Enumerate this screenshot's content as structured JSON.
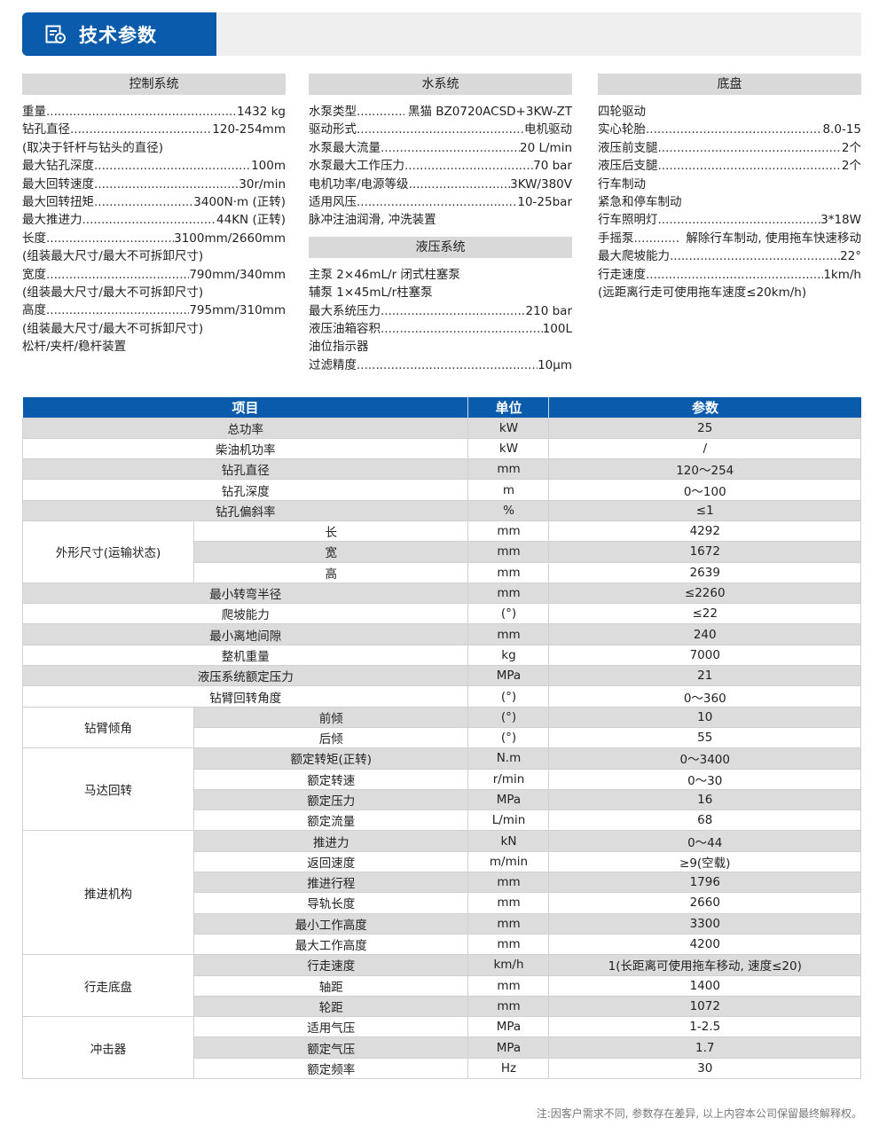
{
  "header": {
    "title": "技术参数",
    "icon": "spec-document-icon",
    "accent": "#0a5bab"
  },
  "sections": [
    {
      "title": "控制系统",
      "lines": [
        {
          "label": "重量",
          "value": "1432 kg"
        },
        {
          "label": "钻孔直径",
          "value": "120-254mm"
        },
        {
          "label": "(取决于钎杆与钻头的直径)"
        },
        {
          "label": "最大钻孔深度",
          "value": "100m"
        },
        {
          "label": "最大回转速度",
          "value": "30r/min"
        },
        {
          "label": "最大回转扭矩",
          "value": "3400N·m (正转)"
        },
        {
          "label": "最大推进力",
          "value": "44KN (正转)"
        },
        {
          "label": "长度",
          "value": "3100mm/2660mm"
        },
        {
          "label": "(组装最大尺寸/最大不可拆卸尺寸)"
        },
        {
          "label": "宽度",
          "value": "790mm/340mm"
        },
        {
          "label": "(组装最大尺寸/最大不可拆卸尺寸)"
        },
        {
          "label": "高度",
          "value": "795mm/310mm"
        },
        {
          "label": "(组装最大尺寸/最大不可拆卸尺寸)"
        },
        {
          "label": "松杆/夹杆/稳杆装置"
        }
      ]
    },
    {
      "title": "水系统",
      "lines": [
        {
          "label": "水泵类型",
          "value": "黑猫 BZ0720ACSD+3KW-ZT",
          "short": true
        },
        {
          "label": "驱动形式",
          "value": "电机驱动"
        },
        {
          "label": "水泵最大流量",
          "value": "20 L/min"
        },
        {
          "label": "水泵最大工作压力",
          "value": "70 bar"
        },
        {
          "label": "电机功率/电源等级",
          "value": "3KW/380V"
        },
        {
          "label": "适用风压",
          "value": "10-25bar"
        },
        {
          "label": "脉冲注油润滑, 冲洗装置"
        }
      ]
    },
    {
      "title": "液压系统",
      "lines": [
        {
          "label": "主泵 2×46mL/r 闭式柱塞泵"
        },
        {
          "label": "辅泵 1×45mL/r柱塞泵"
        },
        {
          "label": "最大系统压力",
          "value": "210 bar"
        },
        {
          "label": "液压油箱容积",
          "value": "100L"
        },
        {
          "label": "油位指示器"
        },
        {
          "label": "过滤精度",
          "value": "10μm"
        }
      ]
    },
    {
      "title": "底盘",
      "lines": [
        {
          "label": "四轮驱动"
        },
        {
          "label": "实心轮胎",
          "value": "8.0-15"
        },
        {
          "label": "液压前支腿",
          "value": "2个"
        },
        {
          "label": "液压后支腿",
          "value": "2个"
        },
        {
          "label": "行车制动"
        },
        {
          "label": "紧急和停车制动"
        },
        {
          "label": "行车照明灯",
          "value": "3*18W"
        },
        {
          "label": "手摇泵",
          "value": "解除行车制动, 使用拖车快速移动",
          "short": true
        },
        {
          "label": "最大爬坡能力",
          "value": "22°"
        },
        {
          "label": "行走速度",
          "value": "1km/h"
        },
        {
          "label": "(远距离行走可使用拖车速度≤20km/h)"
        }
      ]
    }
  ],
  "table": {
    "headers": [
      "项目",
      "单位",
      "参数"
    ],
    "rows": [
      {
        "item": "总功率",
        "unit": "kW",
        "value": "25"
      },
      {
        "item": "柴油机功率",
        "unit": "kW",
        "value": "/"
      },
      {
        "item": "钻孔直径",
        "unit": "mm",
        "value": "120～254"
      },
      {
        "item": "钻孔深度",
        "unit": "m",
        "value": "0～100"
      },
      {
        "item": "钻孔偏斜率",
        "unit": "%",
        "value": "≤1"
      },
      {
        "group": "外形尺寸(运输状态)",
        "span": 3,
        "item": "长",
        "unit": "mm",
        "value": "4292"
      },
      {
        "item": "宽",
        "unit": "mm",
        "value": "1672",
        "sub": true
      },
      {
        "item": "高",
        "unit": "mm",
        "value": "2639",
        "sub": true
      },
      {
        "item": "最小转弯半径",
        "unit": "mm",
        "value": "≤2260"
      },
      {
        "item": "爬坡能力",
        "unit": "(°)",
        "value": "≤22"
      },
      {
        "item": "最小离地间隙",
        "unit": "mm",
        "value": "240"
      },
      {
        "item": "整机重量",
        "unit": "kg",
        "value": "7000"
      },
      {
        "item": "液压系统额定压力",
        "unit": "MPa",
        "value": "21"
      },
      {
        "item": "钻臂回转角度",
        "unit": "(°)",
        "value": "0～360"
      },
      {
        "group": "钻臂倾角",
        "span": 2,
        "item": "前倾",
        "unit": "(°)",
        "value": "10"
      },
      {
        "item": "后倾",
        "unit": "(°)",
        "value": "55",
        "sub": true
      },
      {
        "group": "马达回转",
        "span": 4,
        "item": "额定转矩(正转)",
        "unit": "N.m",
        "value": "0～3400"
      },
      {
        "item": "额定转速",
        "unit": "r/min",
        "value": "0～30",
        "sub": true
      },
      {
        "item": "额定压力",
        "unit": "MPa",
        "value": "16",
        "sub": true
      },
      {
        "item": "额定流量",
        "unit": "L/min",
        "value": "68",
        "sub": true
      },
      {
        "group": "推进机构",
        "span": 6,
        "item": "推进力",
        "unit": "kN",
        "value": "0～44"
      },
      {
        "item": "返回速度",
        "unit": "m/min",
        "value": "≥9(空载)",
        "sub": true
      },
      {
        "item": "推进行程",
        "unit": "mm",
        "value": "1796",
        "sub": true
      },
      {
        "item": "导轨长度",
        "unit": "mm",
        "value": "2660",
        "sub": true
      },
      {
        "item": "最小工作高度",
        "unit": "mm",
        "value": "3300",
        "sub": true
      },
      {
        "item": "最大工作高度",
        "unit": "mm",
        "value": "4200",
        "sub": true
      },
      {
        "group": "行走底盘",
        "span": 3,
        "item": "行走速度",
        "unit": "km/h",
        "value": "1(长距离可使用拖车移动, 速度≤20)"
      },
      {
        "item": "轴距",
        "unit": "mm",
        "value": "1400",
        "sub": true
      },
      {
        "item": "轮距",
        "unit": "mm",
        "value": "1072",
        "sub": true
      },
      {
        "group": "冲击器",
        "span": 3,
        "item": "适用气压",
        "unit": "MPa",
        "value": "1-2.5"
      },
      {
        "item": "额定气压",
        "unit": "MPa",
        "value": "1.7",
        "sub": true
      },
      {
        "item": "额定频率",
        "unit": "Hz",
        "value": "30",
        "sub": true
      }
    ]
  },
  "note": "注:因客户需求不同, 参数存在差异, 以上内容本公司保留最终解释权。"
}
